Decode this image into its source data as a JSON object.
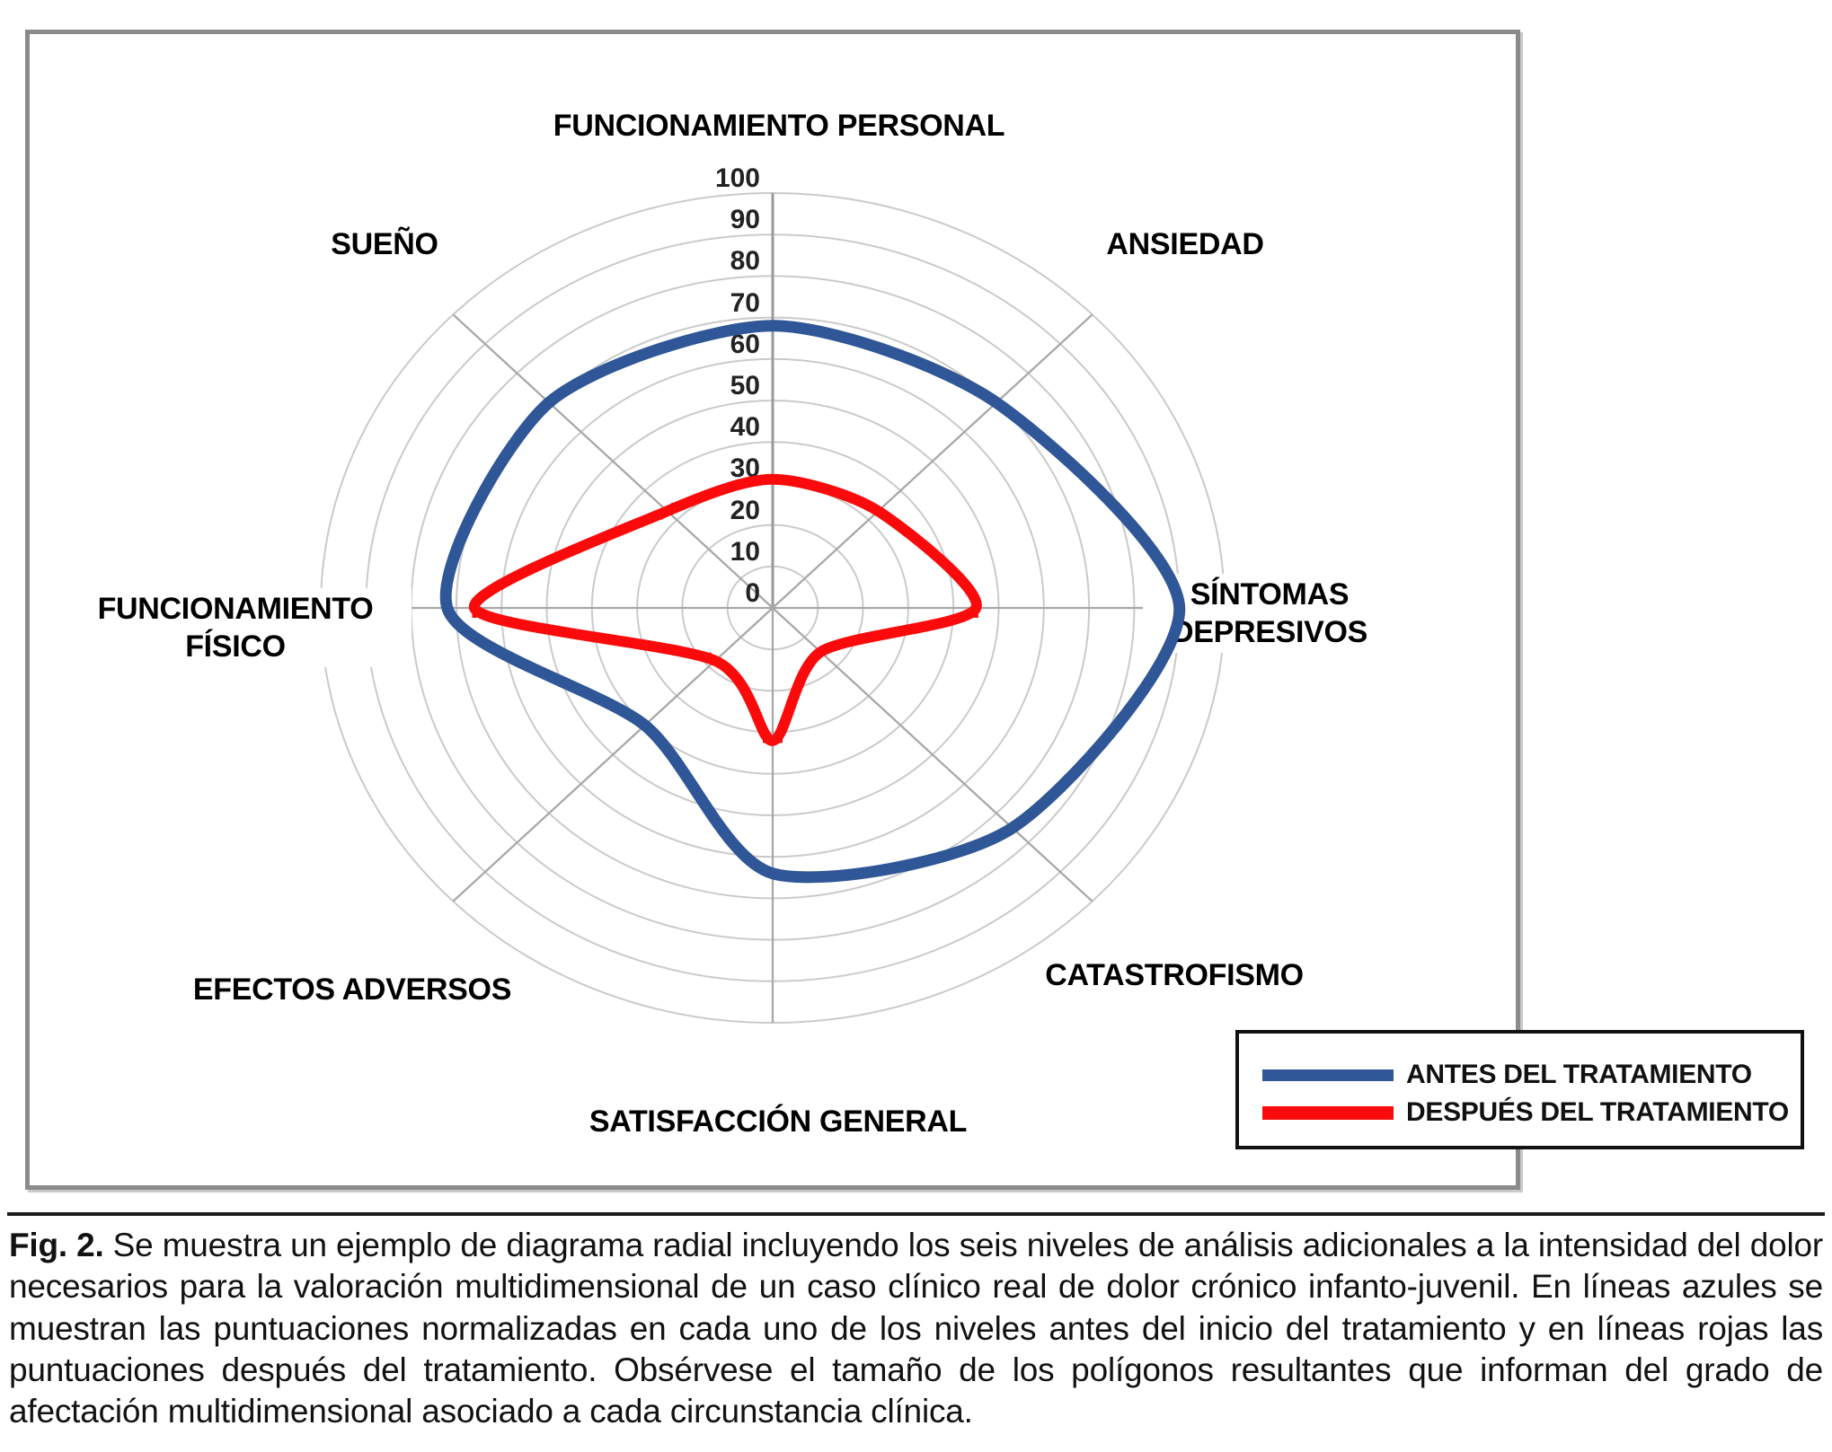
{
  "chart_data": {
    "type": "radar",
    "axes": [
      "FUNCIONAMIENTO PERSONAL",
      "ANSIEDAD",
      "SÍNTOMAS DEPRESIVOS",
      "CATASTROFISMO",
      "SATISFACCIÓN GENERAL",
      "EFECTOS ADVERSOS",
      "FUNCIONAMIENTO FÍSICO",
      "SUEÑO"
    ],
    "scale": {
      "min": 0,
      "max": 100,
      "step": 10
    },
    "ticks": [
      0,
      10,
      20,
      30,
      40,
      50,
      60,
      70,
      80,
      90,
      100
    ],
    "grid": "on",
    "legend_position": "bottom-right",
    "series": [
      {
        "name": "ANTES DEL TRATAMIENTO",
        "color": "#2F5696",
        "values": [
          68,
          70,
          90,
          75,
          64,
          40,
          72,
          70
        ]
      },
      {
        "name": "DESPUÉS DEL TRATAMIENTO",
        "color": "#FA0A0A",
        "values": [
          31,
          33,
          45,
          15,
          32,
          18,
          66,
          33
        ]
      }
    ]
  },
  "legend": {
    "items": [
      {
        "label": "ANTES DEL TRATAMIENTO",
        "color": "#2F5696"
      },
      {
        "label": "DESPUÉS DEL TRATAMIENTO",
        "color": "#FA0A0A"
      }
    ]
  },
  "caption": {
    "prefix": "Fig. 2.",
    "body": "Se muestra un ejemplo de diagrama radial incluyendo los seis niveles de análisis adicionales a la intensidad del dolor necesarios para la valoración multidimensional de un caso clínico real de dolor crónico infanto-juvenil. En líneas azules se muestran las puntuaciones normalizadas en cada uno de los niveles antes del inicio del tratamiento y en líneas rojas las puntuaciones después del tratamiento. Obsérvese el tamaño de los polígonos resultantes que informan del grado de afectación multidimensional asociado a cada circunstancia clínica."
  }
}
